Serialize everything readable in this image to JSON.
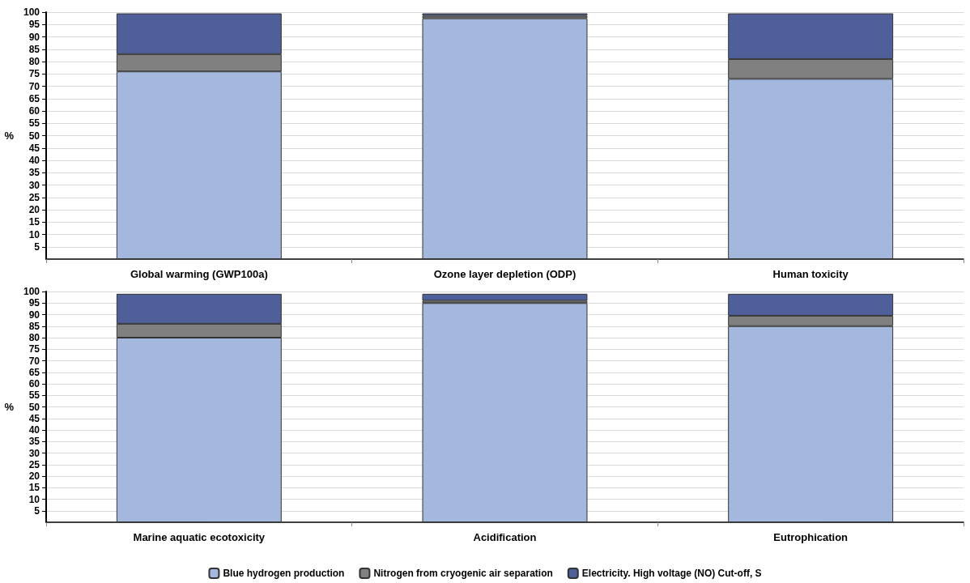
{
  "chart_data": [
    {
      "type": "bar",
      "stacked": true,
      "ylabel": "%",
      "categories": [
        "Global warming (GWP100a)",
        "Ozone layer depletion (ODP)",
        "Human toxicity"
      ],
      "ylim": [
        0,
        100
      ],
      "yticks": [
        5,
        10,
        15,
        20,
        25,
        30,
        35,
        40,
        45,
        50,
        55,
        60,
        65,
        70,
        75,
        80,
        85,
        90,
        95,
        100
      ],
      "grid": "y",
      "legend": false,
      "series": [
        {
          "color": "#a4b7dd",
          "values": [
            76,
            97.5,
            73
          ]
        },
        {
          "color": "#808080",
          "values": [
            7,
            1,
            8
          ]
        },
        {
          "color": "#4f5f9a",
          "values": [
            16.5,
            1,
            18.5
          ]
        }
      ]
    },
    {
      "type": "bar",
      "stacked": true,
      "ylabel": "%",
      "categories": [
        "Marine aquatic ecotoxicity",
        "Acidification",
        "Eutrophication"
      ],
      "ylim": [
        0,
        100
      ],
      "yticks": [
        5,
        10,
        15,
        20,
        25,
        30,
        35,
        40,
        45,
        50,
        55,
        60,
        65,
        70,
        75,
        80,
        85,
        90,
        95,
        100
      ],
      "grid": "y",
      "legend": "bottom",
      "series": [
        {
          "name": "Blue hydrogen production",
          "color": "#a4b7dd",
          "values": [
            80,
            95,
            85
          ]
        },
        {
          "name": "Nitrogen from cryogenic air separation",
          "color": "#808080",
          "values": [
            6,
            1,
            4.5
          ]
        },
        {
          "name": "Electricity. High voltage (NO) Cut-off, S",
          "color": "#4f5f9a",
          "values": [
            13,
            3,
            9.5
          ]
        }
      ]
    }
  ]
}
